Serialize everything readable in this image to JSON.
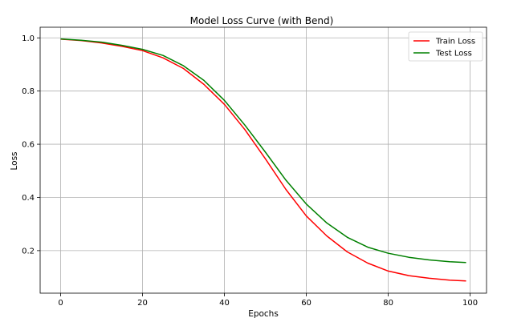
{
  "chart_data": {
    "type": "line",
    "title": "Model Loss Curve (with Bend)",
    "xlabel": "Epochs",
    "ylabel": "Loss",
    "xlim": [
      -5,
      104
    ],
    "ylim": [
      0.04,
      1.04
    ],
    "xticks": [
      0,
      20,
      40,
      60,
      80,
      100
    ],
    "yticks": [
      0.2,
      0.4,
      0.6,
      0.8,
      1.0
    ],
    "xtick_labels": [
      "0",
      "20",
      "40",
      "60",
      "80",
      "100"
    ],
    "ytick_labels": [
      "0.2",
      "0.4",
      "0.6",
      "0.8",
      "1.0"
    ],
    "grid": true,
    "legend_position": "top-right",
    "series": [
      {
        "name": "Train Loss",
        "color": "#ff0000",
        "x": [
          0,
          5,
          10,
          15,
          20,
          25,
          30,
          35,
          40,
          45,
          50,
          55,
          60,
          65,
          70,
          75,
          80,
          85,
          90,
          95,
          99
        ],
        "y": [
          0.995,
          0.99,
          0.981,
          0.968,
          0.952,
          0.925,
          0.885,
          0.825,
          0.75,
          0.655,
          0.545,
          0.43,
          0.33,
          0.255,
          0.195,
          0.153,
          0.123,
          0.106,
          0.096,
          0.089,
          0.086
        ]
      },
      {
        "name": "Test Loss",
        "color": "#008000",
        "x": [
          0,
          5,
          10,
          15,
          20,
          25,
          30,
          35,
          40,
          45,
          50,
          55,
          60,
          65,
          70,
          75,
          80,
          85,
          90,
          95,
          99
        ],
        "y": [
          0.996,
          0.991,
          0.984,
          0.972,
          0.957,
          0.934,
          0.895,
          0.84,
          0.765,
          0.672,
          0.57,
          0.465,
          0.375,
          0.304,
          0.25,
          0.213,
          0.19,
          0.175,
          0.165,
          0.158,
          0.155
        ]
      }
    ]
  }
}
